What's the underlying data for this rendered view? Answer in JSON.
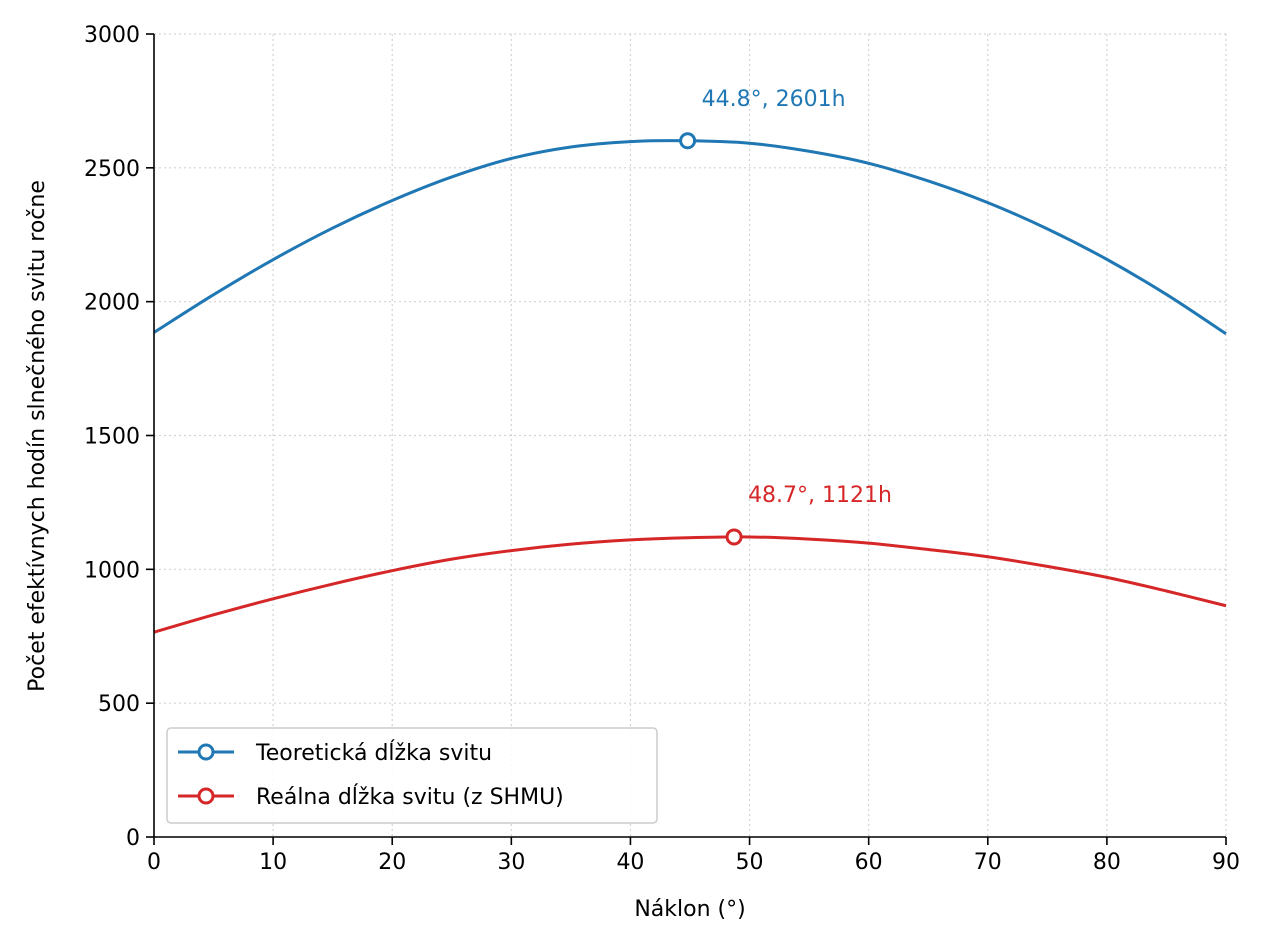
{
  "chart_data": {
    "type": "line",
    "title": "",
    "xlabel": "Náklon (°)",
    "ylabel": "Počet efektívnych hodín slnečného svitu ročne",
    "xlim": [
      0,
      90
    ],
    "ylim": [
      0,
      3000
    ],
    "xticks": [
      0,
      10,
      20,
      30,
      40,
      50,
      60,
      70,
      80,
      90
    ],
    "yticks": [
      0,
      500,
      1000,
      1500,
      2000,
      2500,
      3000
    ],
    "grid": true,
    "legend_position": "lower-left",
    "x": [
      0,
      5,
      10,
      15,
      20,
      25,
      30,
      35,
      40,
      44.8,
      50,
      55,
      60,
      65,
      70,
      75,
      80,
      85,
      90
    ],
    "series": [
      {
        "name": "Teoretická dĺžka svitu",
        "color": "#1f77b4",
        "values": [
          1885,
          2026,
          2157,
          2275,
          2378,
          2466,
          2535,
          2578,
          2598,
          2601,
          2592,
          2562,
          2517,
          2451,
          2370,
          2272,
          2158,
          2027,
          1880
        ],
        "peak": {
          "x": 44.8,
          "y": 2601,
          "label": "44.8°, 2601h"
        }
      },
      {
        "name": "Reálna dĺžka svitu (z SHMU)",
        "color": "#d62728",
        "values": [
          765,
          830,
          890,
          945,
          995,
          1038,
          1070,
          1094,
          1110,
          1118,
          1121,
          1113,
          1098,
          1074,
          1047,
          1011,
          970,
          919,
          864
        ],
        "peak": {
          "x": 48.7,
          "y": 1121,
          "label": "48.7°, 1121h"
        }
      }
    ]
  }
}
